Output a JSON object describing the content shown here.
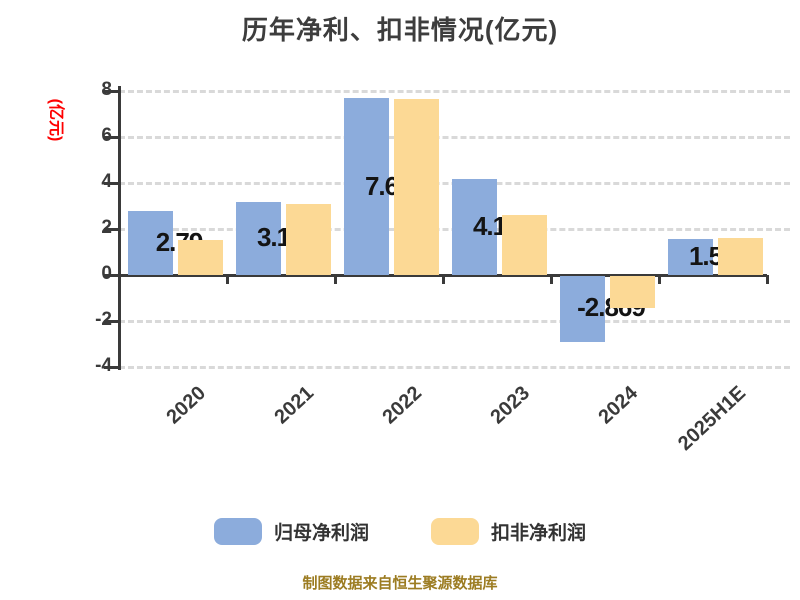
{
  "chart_data": {
    "type": "bar",
    "title": "历年净利、扣非情况(亿元)",
    "ylabel": "(亿元)",
    "footer": "制图数据来自恒生聚源数据库",
    "categories": [
      "2020",
      "2021",
      "2022",
      "2023",
      "2024",
      "2025H1E"
    ],
    "series": [
      {
        "name": "归母净利润",
        "color": "#8cacdc",
        "values": [
          2.79,
          3.181,
          7.686,
          4.177,
          -2.869,
          1.563
        ],
        "labels": [
          "2.79",
          "3.181",
          "7.686",
          "4.177",
          "-2.869",
          "1.563"
        ]
      },
      {
        "name": "扣非净利润",
        "color": "#fcd995",
        "values": [
          1.5,
          3.1,
          7.65,
          2.6,
          -1.4,
          1.6
        ]
      }
    ],
    "ylim": [
      -4,
      8
    ],
    "yticks": [
      8,
      6,
      4,
      2,
      0,
      -2,
      -4
    ],
    "grid": "dashed",
    "legend_position": "bottom"
  },
  "colors": {
    "title": "#3d3d3d",
    "axis": "#3a3a3a",
    "grid": "#d9d9d9",
    "bar_label": "#141414",
    "ylabel_red": "#ff0000",
    "footer": "#9c7c22"
  }
}
